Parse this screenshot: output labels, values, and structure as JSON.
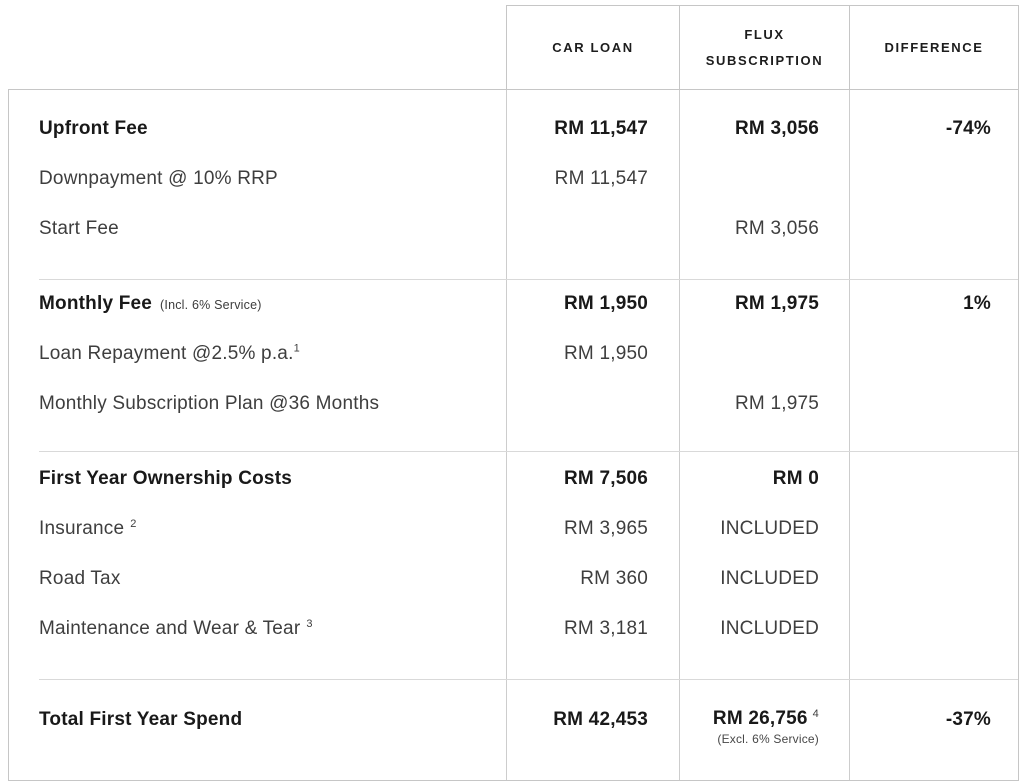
{
  "table": {
    "columns": [
      "",
      "CAR LOAN",
      "FLUX SUBSCRIPTION",
      "DIFFERENCE"
    ],
    "sections": [
      {
        "name": "upfront",
        "rows": [
          {
            "label": "Upfront Fee",
            "car_loan": "RM 11,547",
            "flux": "RM 3,056",
            "difference": "-74%"
          },
          {
            "label": "Downpayment @ 10% RRP",
            "car_loan": "RM 11,547"
          },
          {
            "label": "Start Fee",
            "flux": "RM 3,056"
          }
        ]
      },
      {
        "name": "monthly",
        "rows": [
          {
            "label": "Monthly Fee",
            "label_note": "(Incl. 6% Service)",
            "car_loan": "RM 1,950",
            "flux": "RM 1,975",
            "difference": "1%"
          },
          {
            "label": "Loan Repayment @2.5% p.a.",
            "label_sup": "1",
            "car_loan": "RM 1,950"
          },
          {
            "label": "Monthly Subscription Plan @36 Months",
            "flux": "RM 1,975"
          }
        ]
      },
      {
        "name": "first-year-ownership",
        "rows": [
          {
            "label": "First Year Ownership Costs",
            "car_loan": "RM 7,506",
            "flux": "RM 0"
          },
          {
            "label": "Insurance",
            "label_sup": "2",
            "car_loan": "RM 3,965",
            "flux": "INCLUDED"
          },
          {
            "label": "Road Tax",
            "car_loan": "RM 360",
            "flux": "INCLUDED"
          },
          {
            "label": "Maintenance and Wear & Tear",
            "label_sup": "3",
            "car_loan": "RM 3,181",
            "flux": "INCLUDED"
          }
        ]
      },
      {
        "name": "total",
        "rows": [
          {
            "label": "Total First Year Spend",
            "car_loan": "RM 42,453",
            "flux": "RM 26,756",
            "flux_sup": "4",
            "flux_note": "(Excl. 6% Service)",
            "difference": "-37%"
          }
        ]
      }
    ]
  },
  "chart_data": {
    "type": "table",
    "title": "Car Loan vs Flux Subscription first-year cost comparison",
    "columns": [
      "",
      "CAR LOAN",
      "FLUX SUBSCRIPTION",
      "DIFFERENCE"
    ],
    "rows": [
      [
        "Upfront Fee",
        "RM 11,547",
        "RM 3,056",
        "-74%"
      ],
      [
        "Downpayment @ 10% RRP",
        "RM 11,547",
        "",
        ""
      ],
      [
        "Start Fee",
        "",
        "RM 3,056",
        ""
      ],
      [
        "Monthly Fee (Incl. 6% Service)",
        "RM 1,950",
        "RM 1,975",
        "1%"
      ],
      [
        "Loan Repayment @2.5% p.a.¹",
        "RM 1,950",
        "",
        ""
      ],
      [
        "Monthly Subscription Plan @36 Months",
        "",
        "RM 1,975",
        ""
      ],
      [
        "First Year Ownership Costs",
        "RM 7,506",
        "RM 0",
        ""
      ],
      [
        "Insurance ²",
        "RM 3,965",
        "INCLUDED",
        ""
      ],
      [
        "Road Tax",
        "RM 360",
        "INCLUDED",
        ""
      ],
      [
        "Maintenance and Wear & Tear ³",
        "RM 3,181",
        "INCLUDED",
        ""
      ],
      [
        "Total First Year Spend",
        "RM 42,453",
        "RM 26,756 ⁴ (Excl. 6% Service)",
        "-37%"
      ]
    ],
    "colors": {
      "text_strong": "#191919",
      "text": "#3e3e3e",
      "border": "#c6c6c6",
      "divider": "#d9d9d9",
      "background": "#ffffff"
    }
  }
}
